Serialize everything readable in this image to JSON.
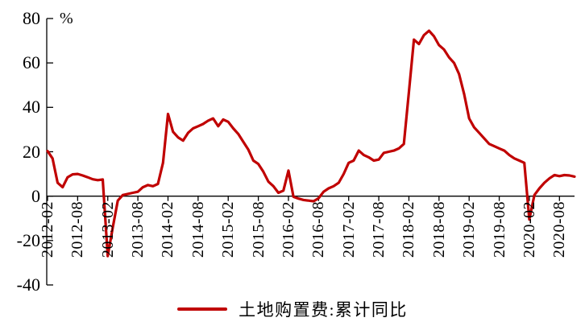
{
  "chart": {
    "unit_label": "%",
    "colors": {
      "line": "#C00000",
      "axis": "#000000",
      "text": "#000000",
      "background": "#FFFFFF"
    },
    "legend": {
      "label": "土地购置费:累计同比"
    }
  },
  "chart_data": {
    "type": "line",
    "title": "",
    "xlabel": "",
    "ylabel": "%",
    "ylim": [
      -40,
      80
    ],
    "ytick_step": 20,
    "yticks": [
      80,
      60,
      40,
      20,
      0,
      -20,
      -40
    ],
    "grid": false,
    "legend_position": "bottom",
    "xtick_labels": [
      "2012-02",
      "2012-08",
      "2013-02",
      "2013-08",
      "2014-02",
      "2014-08",
      "2015-02",
      "2015-08",
      "2016-02",
      "2016-08",
      "2017-02",
      "2017-08",
      "2018-02",
      "2018-08",
      "2019-02",
      "2019-08",
      "2020-02",
      "2020-08"
    ],
    "x": [
      "2012-02",
      "2012-03",
      "2012-04",
      "2012-05",
      "2012-06",
      "2012-07",
      "2012-08",
      "2012-09",
      "2012-10",
      "2012-11",
      "2012-12",
      "2013-01",
      "2013-02",
      "2013-03",
      "2013-04",
      "2013-05",
      "2013-06",
      "2013-07",
      "2013-08",
      "2013-09",
      "2013-10",
      "2013-11",
      "2013-12",
      "2014-01",
      "2014-02",
      "2014-03",
      "2014-04",
      "2014-05",
      "2014-06",
      "2014-07",
      "2014-08",
      "2014-09",
      "2014-10",
      "2014-11",
      "2014-12",
      "2015-01",
      "2015-02",
      "2015-03",
      "2015-04",
      "2015-05",
      "2015-06",
      "2015-07",
      "2015-08",
      "2015-09",
      "2015-10",
      "2015-11",
      "2015-12",
      "2016-01",
      "2016-02",
      "2016-03",
      "2016-04",
      "2016-05",
      "2016-06",
      "2016-07",
      "2016-08",
      "2016-09",
      "2016-10",
      "2016-11",
      "2016-12",
      "2017-01",
      "2017-02",
      "2017-03",
      "2017-04",
      "2017-05",
      "2017-06",
      "2017-07",
      "2017-08",
      "2017-09",
      "2017-10",
      "2017-11",
      "2017-12",
      "2018-01",
      "2018-02",
      "2018-03",
      "2018-04",
      "2018-05",
      "2018-06",
      "2018-07",
      "2018-08",
      "2018-09",
      "2018-10",
      "2018-11",
      "2018-12",
      "2019-01",
      "2019-02",
      "2019-03",
      "2019-04",
      "2019-05",
      "2019-06",
      "2019-07",
      "2019-08",
      "2019-09",
      "2019-10",
      "2019-11",
      "2019-12",
      "2020-01",
      "2020-02",
      "2020-03",
      "2020-04",
      "2020-05",
      "2020-06",
      "2020-07",
      "2020-08",
      "2020-09",
      "2020-10",
      "2020-11"
    ],
    "series": [
      {
        "name": "土地购置费:累计同比",
        "color": "#C00000",
        "values": [
          20.3,
          17,
          6,
          4,
          8.5,
          9.8,
          10,
          9.3,
          8.5,
          7.6,
          7.2,
          7.5,
          -27,
          -14,
          -2,
          0.5,
          1,
          1.5,
          2,
          4,
          5,
          4.5,
          5.5,
          15,
          37,
          29,
          26.5,
          25,
          28.5,
          30.5,
          31.5,
          32.5,
          34,
          35,
          31.5,
          34.5,
          33.5,
          30.5,
          28,
          24.5,
          21,
          16,
          14.5,
          11,
          6.5,
          4.5,
          1.5,
          2.5,
          11.5,
          -0.3,
          -1.1,
          -1.7,
          -2,
          -2.3,
          -1,
          2,
          3.5,
          4.5,
          6,
          10,
          15,
          16,
          20.5,
          18.5,
          17.5,
          16,
          16.5,
          19.5,
          20,
          20.5,
          21.5,
          23.5,
          47,
          70.5,
          68.5,
          72.5,
          74.5,
          72,
          68,
          66,
          62.5,
          60,
          55,
          46,
          35,
          31,
          28.5,
          26,
          23.5,
          22.5,
          21.5,
          20.5,
          18.5,
          17,
          16,
          15,
          -10.5,
          0.5,
          3.5,
          6,
          8,
          9.5,
          9,
          9.5,
          9.3,
          8.8
        ]
      }
    ]
  }
}
